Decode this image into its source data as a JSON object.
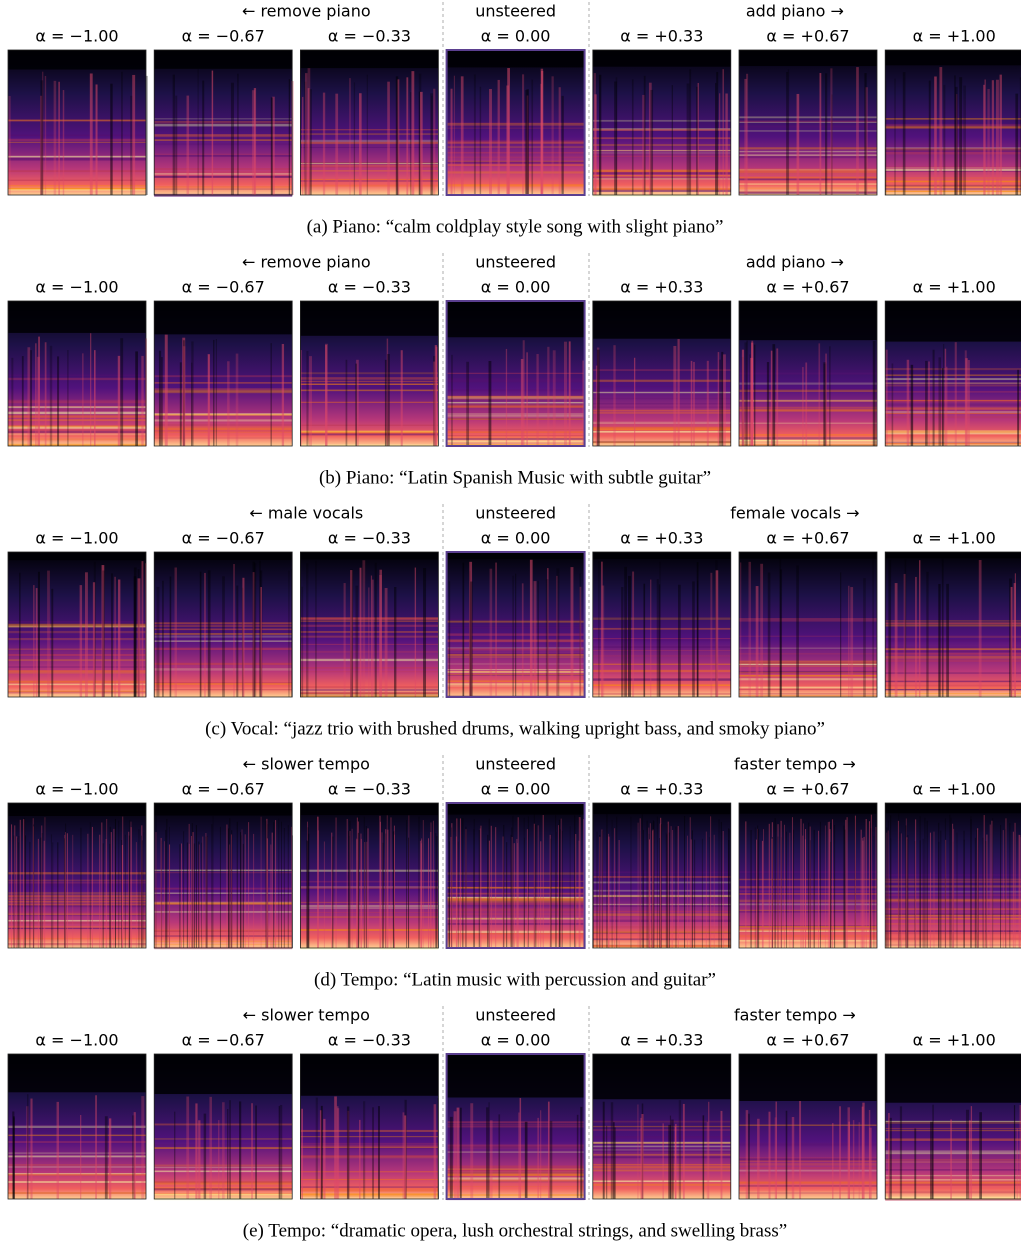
{
  "rows": [
    {
      "left": "← remove piano",
      "center": "unsteered",
      "right": "add piano →",
      "alphas": [
        "α = −1.00",
        "α = −0.67",
        "α = −0.33",
        "α = 0.00",
        "α = +0.33",
        "α = +0.67",
        "α = +1.00"
      ],
      "caption": "(a) Piano: “calm coldplay style song with slight piano”"
    },
    {
      "left": "← remove piano",
      "center": "unsteered",
      "right": "add piano →",
      "alphas": [
        "α = −1.00",
        "α = −0.67",
        "α = −0.33",
        "α = 0.00",
        "α = +0.33",
        "α = +0.67",
        "α = +1.00"
      ],
      "caption": "(b) Piano: “Latin Spanish Music with subtle guitar”"
    },
    {
      "left": "← male vocals",
      "center": "unsteered",
      "right": "female vocals →",
      "alphas": [
        "α = −1.00",
        "α = −0.67",
        "α = −0.33",
        "α = 0.00",
        "α = +0.33",
        "α = +0.67",
        "α = +1.00"
      ],
      "caption": "(c) Vocal: “jazz trio with brushed drums, walking upright bass, and smoky piano”"
    },
    {
      "left": "← slower tempo",
      "center": "unsteered",
      "right": "faster tempo →",
      "alphas": [
        "α = −1.00",
        "α = −0.67",
        "α = −0.33",
        "α = 0.00",
        "α = +0.33",
        "α = +0.67",
        "α = +1.00"
      ],
      "caption": "(d) Tempo: “Latin music with percussion and guitar”"
    },
    {
      "left": "← slower tempo",
      "center": "unsteered",
      "right": "faster tempo →",
      "alphas": [
        "α = −1.00",
        "α = −0.67",
        "α = −0.33",
        "α = 0.00",
        "α = +0.33",
        "α = +0.67",
        "α = +1.00"
      ],
      "caption": "(e) Tempo: “dramatic opera, lush orchestral strings, and swelling brass”"
    }
  ]
}
